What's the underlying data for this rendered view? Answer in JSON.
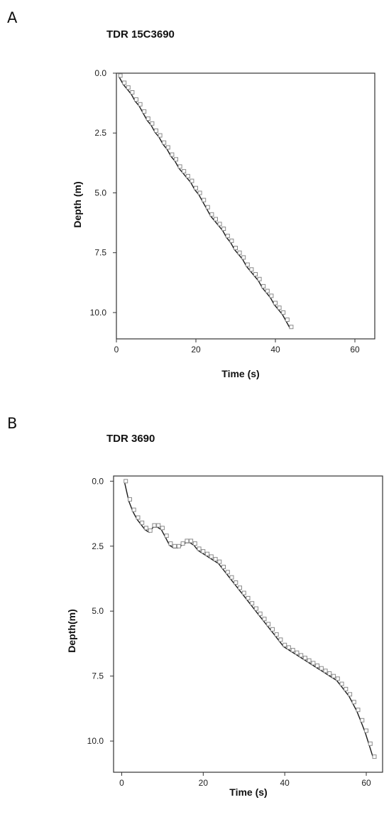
{
  "panels": [
    {
      "letter": "A"
    },
    {
      "letter": "B"
    }
  ],
  "chart_data": [
    {
      "type": "scatter",
      "title": "TDR 15C3690",
      "xlabel": "Time (s)",
      "ylabel": "Depth (m)",
      "xlim": [
        0,
        65
      ],
      "ylim": [
        0,
        11.1
      ],
      "y_inverted": true,
      "grid": false,
      "xticks": [
        "0",
        "20",
        "40",
        "60"
      ],
      "yticks": [
        "0.0",
        "2.5",
        "5.0",
        "7.5",
        "10.0"
      ],
      "series": [
        {
          "marker": "square",
          "color": "#8a8a8a",
          "x": [
            1,
            2,
            3,
            4,
            5,
            6,
            7,
            8,
            9,
            10,
            11,
            12,
            13,
            14,
            15,
            16,
            17,
            18,
            19,
            20,
            21,
            22,
            23,
            24,
            25,
            26,
            27,
            28,
            29,
            30,
            31,
            32,
            33,
            34,
            35,
            36,
            37,
            38,
            39,
            40,
            41,
            42,
            43,
            44
          ],
          "y": [
            0.1,
            0.4,
            0.6,
            0.8,
            1.1,
            1.3,
            1.6,
            1.9,
            2.1,
            2.4,
            2.6,
            2.9,
            3.1,
            3.4,
            3.6,
            3.9,
            4.1,
            4.3,
            4.5,
            4.8,
            5.0,
            5.3,
            5.6,
            5.9,
            6.1,
            6.3,
            6.5,
            6.8,
            7.0,
            7.3,
            7.5,
            7.7,
            8.0,
            8.2,
            8.4,
            8.6,
            8.9,
            9.1,
            9.3,
            9.6,
            9.8,
            10.0,
            10.3,
            10.6
          ]
        }
      ]
    },
    {
      "type": "scatter",
      "title": "TDR 3690",
      "xlabel": "Time (s)",
      "ylabel": "Depth(m)",
      "xlim": [
        -2,
        64
      ],
      "ylim": [
        -0.2,
        11.2
      ],
      "y_inverted": true,
      "grid": false,
      "xticks": [
        "0",
        "20",
        "40",
        "60"
      ],
      "yticks": [
        "0.0",
        "2.5",
        "5.0",
        "7.5",
        "10.0"
      ],
      "series": [
        {
          "marker": "square",
          "color": "#8a8a8a",
          "x": [
            1,
            2,
            3,
            4,
            5,
            6,
            7,
            8,
            9,
            10,
            11,
            12,
            13,
            14,
            15,
            16,
            17,
            18,
            19,
            20,
            21,
            22,
            23,
            24,
            25,
            26,
            27,
            28,
            29,
            30,
            31,
            32,
            33,
            34,
            35,
            36,
            37,
            38,
            39,
            40,
            41,
            42,
            43,
            44,
            45,
            46,
            47,
            48,
            49,
            50,
            51,
            52,
            53,
            54,
            55,
            56,
            57,
            58,
            59,
            60,
            61,
            62
          ],
          "y": [
            0.0,
            0.7,
            1.1,
            1.4,
            1.6,
            1.8,
            1.9,
            1.7,
            1.7,
            1.8,
            2.1,
            2.4,
            2.5,
            2.5,
            2.4,
            2.3,
            2.3,
            2.4,
            2.6,
            2.7,
            2.8,
            2.9,
            3.0,
            3.1,
            3.3,
            3.5,
            3.7,
            3.9,
            4.1,
            4.3,
            4.5,
            4.7,
            4.9,
            5.1,
            5.3,
            5.5,
            5.7,
            5.9,
            6.1,
            6.3,
            6.4,
            6.5,
            6.6,
            6.7,
            6.8,
            6.9,
            7.0,
            7.1,
            7.2,
            7.3,
            7.4,
            7.5,
            7.6,
            7.8,
            8.0,
            8.2,
            8.5,
            8.8,
            9.2,
            9.6,
            10.1,
            10.6
          ]
        }
      ]
    }
  ]
}
